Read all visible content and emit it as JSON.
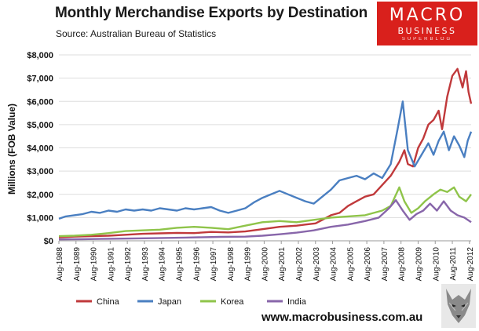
{
  "header": {
    "title": "Monthly Merchandise Exports by Destination",
    "source": "Source:  Australian Bureau of Statistics"
  },
  "brand": {
    "line1": "MACRO",
    "line2": "BUSINESS",
    "line3": "SUPERBLOG",
    "color": "#d9201c"
  },
  "footer": {
    "url": "www.macrobusiness.com.au",
    "logo_icon": "wolf-icon"
  },
  "chart_data": {
    "type": "line",
    "ylabel": "Millions (FOB Value)",
    "ylim": [
      0,
      8000
    ],
    "yticks": [
      0,
      1000,
      2000,
      3000,
      4000,
      5000,
      6000,
      7000,
      8000
    ],
    "ytick_labels": [
      "$0",
      "$1,000",
      "$2,000",
      "$3,000",
      "$4,000",
      "$5,000",
      "$6,000",
      "$7,000",
      "$8,000"
    ],
    "xtick_labels": [
      "Aug-1988",
      "Aug-1989",
      "Aug-1990",
      "Aug-1991",
      "Aug-1992",
      "Aug-1993",
      "Aug-1994",
      "Aug-1995",
      "Aug-1996",
      "Aug-1997",
      "Aug-1998",
      "Aug-1999",
      "Aug-2000",
      "Aug-2001",
      "Aug-2002",
      "Aug-2003",
      "Aug-2004",
      "Aug-2005",
      "Aug-2006",
      "Aug-2007",
      "Aug-2008",
      "Aug-2009",
      "Aug-2010",
      "Aug-2011",
      "Aug-2012"
    ],
    "x_unit": "year",
    "legend_position": "bottom",
    "series": [
      {
        "name": "China",
        "color": "#c0393b",
        "points": [
          [
            1988.6,
            150
          ],
          [
            1989.5,
            180
          ],
          [
            1990.5,
            200
          ],
          [
            1991.5,
            220
          ],
          [
            1992.5,
            260
          ],
          [
            1993.5,
            300
          ],
          [
            1994.5,
            320
          ],
          [
            1995.5,
            340
          ],
          [
            1996.5,
            330
          ],
          [
            1997.5,
            380
          ],
          [
            1998.5,
            360
          ],
          [
            1999.5,
            400
          ],
          [
            2000.5,
            500
          ],
          [
            2001.5,
            600
          ],
          [
            2002.5,
            650
          ],
          [
            2003.0,
            700
          ],
          [
            2003.6,
            750
          ],
          [
            2004.0,
            900
          ],
          [
            2004.5,
            1100
          ],
          [
            2005.0,
            1200
          ],
          [
            2005.5,
            1500
          ],
          [
            2006.0,
            1700
          ],
          [
            2006.5,
            1900
          ],
          [
            2007.0,
            2000
          ],
          [
            2007.5,
            2400
          ],
          [
            2008.0,
            2800
          ],
          [
            2008.5,
            3400
          ],
          [
            2008.8,
            3900
          ],
          [
            2009.0,
            3300
          ],
          [
            2009.3,
            3200
          ],
          [
            2009.6,
            4000
          ],
          [
            2009.9,
            4400
          ],
          [
            2010.2,
            5000
          ],
          [
            2010.5,
            5200
          ],
          [
            2010.8,
            5600
          ],
          [
            2011.0,
            4800
          ],
          [
            2011.3,
            6200
          ],
          [
            2011.6,
            7100
          ],
          [
            2011.9,
            7400
          ],
          [
            2012.2,
            6600
          ],
          [
            2012.4,
            7300
          ],
          [
            2012.55,
            6400
          ],
          [
            2012.7,
            5900
          ]
        ]
      },
      {
        "name": "Japan",
        "color": "#4a7fc1",
        "points": [
          [
            1988.6,
            950
          ],
          [
            1989.0,
            1050
          ],
          [
            1989.5,
            1100
          ],
          [
            1990.0,
            1150
          ],
          [
            1990.5,
            1250
          ],
          [
            1991.0,
            1200
          ],
          [
            1991.5,
            1300
          ],
          [
            1992.0,
            1250
          ],
          [
            1992.5,
            1350
          ],
          [
            1993.0,
            1300
          ],
          [
            1993.5,
            1350
          ],
          [
            1994.0,
            1300
          ],
          [
            1994.5,
            1400
          ],
          [
            1995.0,
            1350
          ],
          [
            1995.5,
            1300
          ],
          [
            1996.0,
            1400
          ],
          [
            1996.5,
            1350
          ],
          [
            1997.0,
            1400
          ],
          [
            1997.5,
            1450
          ],
          [
            1998.0,
            1300
          ],
          [
            1998.5,
            1200
          ],
          [
            1999.0,
            1300
          ],
          [
            1999.5,
            1400
          ],
          [
            2000.0,
            1650
          ],
          [
            2000.5,
            1850
          ],
          [
            2001.0,
            2000
          ],
          [
            2001.5,
            2150
          ],
          [
            2002.0,
            2000
          ],
          [
            2002.5,
            1850
          ],
          [
            2003.0,
            1700
          ],
          [
            2003.5,
            1600
          ],
          [
            2004.0,
            1900
          ],
          [
            2004.5,
            2200
          ],
          [
            2005.0,
            2600
          ],
          [
            2005.5,
            2700
          ],
          [
            2006.0,
            2800
          ],
          [
            2006.5,
            2650
          ],
          [
            2007.0,
            2900
          ],
          [
            2007.5,
            2700
          ],
          [
            2008.0,
            3300
          ],
          [
            2008.4,
            4800
          ],
          [
            2008.7,
            6000
          ],
          [
            2009.0,
            3900
          ],
          [
            2009.4,
            3200
          ],
          [
            2009.8,
            3700
          ],
          [
            2010.2,
            4200
          ],
          [
            2010.5,
            3700
          ],
          [
            2010.8,
            4300
          ],
          [
            2011.1,
            4700
          ],
          [
            2011.4,
            3900
          ],
          [
            2011.7,
            4500
          ],
          [
            2012.0,
            4100
          ],
          [
            2012.3,
            3600
          ],
          [
            2012.5,
            4300
          ],
          [
            2012.7,
            4700
          ]
        ]
      },
      {
        "name": "Korea",
        "color": "#8fc44a",
        "points": [
          [
            1988.6,
            200
          ],
          [
            1989.5,
            220
          ],
          [
            1990.5,
            260
          ],
          [
            1991.5,
            330
          ],
          [
            1992.5,
            420
          ],
          [
            1993.5,
            450
          ],
          [
            1994.5,
            480
          ],
          [
            1995.5,
            560
          ],
          [
            1996.5,
            600
          ],
          [
            1997.5,
            560
          ],
          [
            1998.5,
            500
          ],
          [
            1999.5,
            650
          ],
          [
            2000.5,
            800
          ],
          [
            2001.5,
            850
          ],
          [
            2002.5,
            800
          ],
          [
            2003.5,
            900
          ],
          [
            2004.5,
            1000
          ],
          [
            2005.5,
            1050
          ],
          [
            2006.5,
            1100
          ],
          [
            2007.5,
            1300
          ],
          [
            2008.0,
            1500
          ],
          [
            2008.5,
            2300
          ],
          [
            2008.8,
            1700
          ],
          [
            2009.2,
            1200
          ],
          [
            2009.6,
            1400
          ],
          [
            2010.0,
            1700
          ],
          [
            2010.5,
            2000
          ],
          [
            2010.9,
            2200
          ],
          [
            2011.3,
            2100
          ],
          [
            2011.7,
            2300
          ],
          [
            2012.0,
            1900
          ],
          [
            2012.4,
            1700
          ],
          [
            2012.7,
            2000
          ]
        ]
      },
      {
        "name": "India",
        "color": "#8866aa",
        "points": [
          [
            1988.6,
            60
          ],
          [
            1990.0,
            70
          ],
          [
            1992.0,
            90
          ],
          [
            1994.0,
            110
          ],
          [
            1996.0,
            140
          ],
          [
            1998.0,
            170
          ],
          [
            1999.5,
            180
          ],
          [
            2000.5,
            220
          ],
          [
            2001.5,
            280
          ],
          [
            2002.5,
            350
          ],
          [
            2003.5,
            450
          ],
          [
            2004.5,
            600
          ],
          [
            2005.5,
            700
          ],
          [
            2006.5,
            850
          ],
          [
            2007.3,
            1000
          ],
          [
            2007.9,
            1400
          ],
          [
            2008.3,
            1750
          ],
          [
            2008.7,
            1300
          ],
          [
            2009.1,
            900
          ],
          [
            2009.5,
            1150
          ],
          [
            2009.9,
            1300
          ],
          [
            2010.3,
            1600
          ],
          [
            2010.7,
            1300
          ],
          [
            2011.1,
            1700
          ],
          [
            2011.5,
            1300
          ],
          [
            2011.9,
            1100
          ],
          [
            2012.3,
            1000
          ],
          [
            2012.7,
            800
          ]
        ]
      }
    ]
  }
}
